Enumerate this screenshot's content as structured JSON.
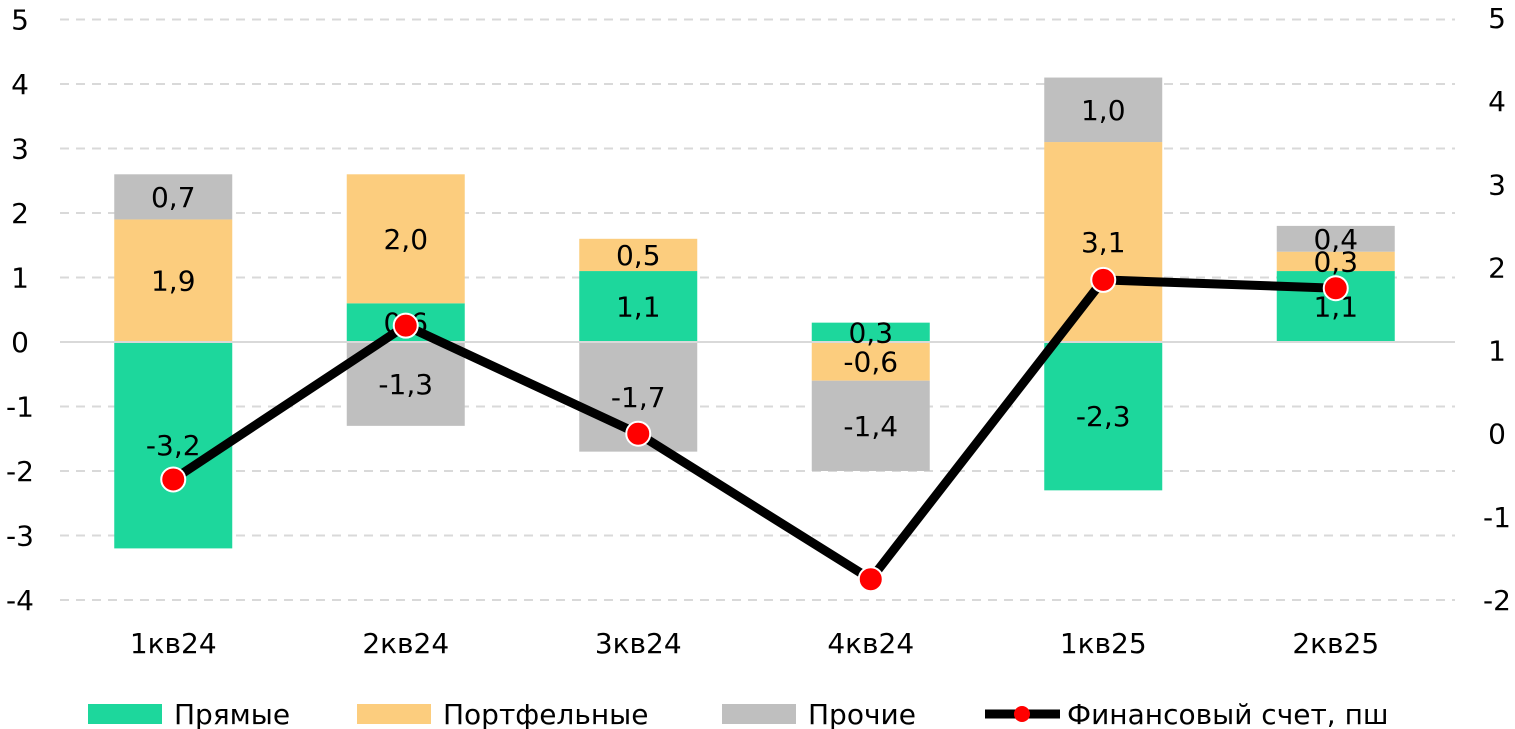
{
  "chart_data": {
    "type": "bar",
    "stacked": true,
    "categories": [
      "1кв24",
      "2кв24",
      "3кв24",
      "4кв24",
      "1кв25",
      "2кв25"
    ],
    "series": [
      {
        "name": "Прямые",
        "color": "#1dd79c",
        "values": [
          -3.2,
          0.6,
          1.1,
          0.3,
          -2.3,
          1.1
        ],
        "labels": [
          "-3,2",
          "0,6",
          "1,1",
          "0,3",
          "-2,3",
          "1,1"
        ]
      },
      {
        "name": "Портфельные",
        "color": "#fccd7e",
        "values": [
          1.9,
          2.0,
          0.5,
          -0.6,
          3.1,
          0.3
        ],
        "labels": [
          "1,9",
          "2,0",
          "0,5",
          "-0,6",
          "3,1",
          "0,3"
        ]
      },
      {
        "name": "Прочие",
        "color": "#bfbfbf",
        "values": [
          0.7,
          -1.3,
          -1.7,
          -1.4,
          1.0,
          0.4
        ],
        "labels": [
          "0,7",
          "-1,3",
          "-1,7",
          "-1,4",
          "1,0",
          "0,4"
        ]
      }
    ],
    "line": {
      "name": "Финансовый счет, пш",
      "axis": "right",
      "values": [
        -0.55,
        1.3,
        0.0,
        -1.75,
        1.85,
        1.75
      ],
      "line_color": "#000000",
      "marker_color": "#ff0000"
    },
    "y_left": {
      "min": -4,
      "max": 5,
      "ticks": [
        5,
        4,
        3,
        2,
        1,
        0,
        -1,
        -2,
        -3,
        -4
      ],
      "tick_labels": [
        "5",
        "4",
        "3",
        "2",
        "1",
        "0",
        "-1",
        "-2",
        "-3",
        "-4"
      ]
    },
    "y_right": {
      "min": -2,
      "max": 5,
      "ticks": [
        5,
        4,
        3,
        2,
        1,
        0,
        -1,
        -2
      ],
      "tick_labels": [
        "5",
        "4",
        "3",
        "2",
        "1",
        "0",
        "-1",
        "-2"
      ]
    },
    "grid": true,
    "legend_position": "bottom"
  }
}
